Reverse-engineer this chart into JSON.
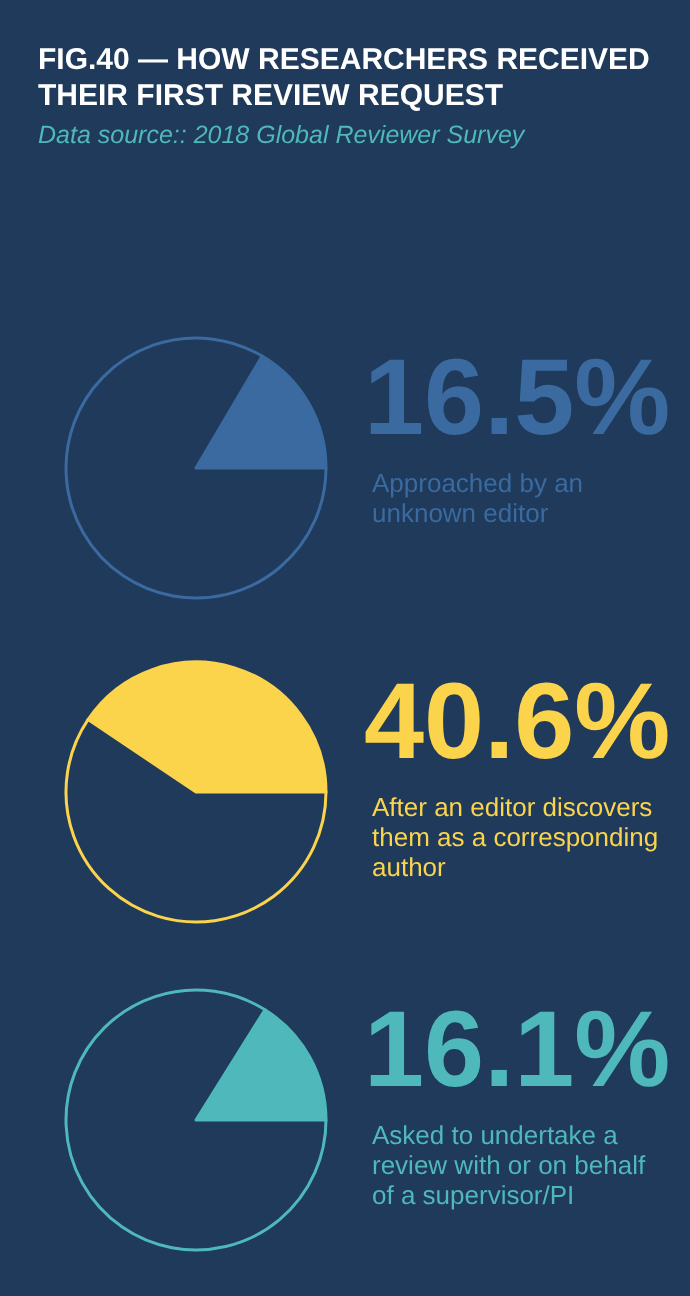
{
  "chart_data": [
    {
      "type": "pie",
      "title": "FIG.40 — HOW RESEARCHERS RECEIVED\nTHEIR FIRST REVIEW REQUEST",
      "annotations": [
        "Data source:: 2018 Global Reviewer Survey"
      ],
      "categories": [
        "Approached by an unknown editor",
        null
      ],
      "values": [
        16.5,
        83.5
      ],
      "colors": [
        "#3a6aa0",
        "#1f3a5a"
      ],
      "value_labels": [
        "16.5%",
        null
      ]
    },
    {
      "type": "pie",
      "categories": [
        "After an editor discovers them as a corresponding author",
        null
      ],
      "values": [
        40.6,
        59.4
      ],
      "colors": [
        "#fbd44c",
        "#1f3a5a"
      ],
      "value_labels": [
        "40.6%",
        null
      ]
    },
    {
      "type": "pie",
      "categories": [
        "Asked to undertake a review with or on behalf of a supervisor/PI",
        null
      ],
      "values": [
        16.1,
        83.9
      ],
      "colors": [
        "#4fb8bb",
        "#1f3a5a"
      ],
      "value_labels": [
        "16.1%",
        null
      ]
    }
  ]
}
